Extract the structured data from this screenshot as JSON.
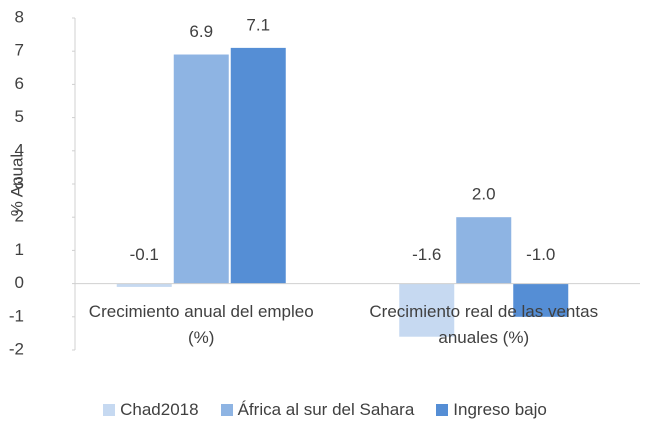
{
  "chart_data": {
    "type": "bar",
    "y_label": "% Anual",
    "categories": [
      "Crecimiento anual del empleo (%)",
      "Crecimiento real de las ventas anuales (%)"
    ],
    "series": [
      {
        "name": "Chad2018",
        "color": "#c6d9f1",
        "values": [
          -0.1,
          -1.6
        ],
        "value_labels": [
          "-0.1",
          "-1.6"
        ]
      },
      {
        "name": "África al sur del Sahara",
        "color": "#8eb4e3",
        "values": [
          6.9,
          2.0
        ],
        "value_labels": [
          "6.9",
          "2.0"
        ]
      },
      {
        "name": "Ingreso  bajo",
        "color": "#558ed5",
        "values": [
          7.1,
          -1.0
        ],
        "value_labels": [
          "7.1",
          "-1.0"
        ]
      }
    ],
    "ylim": [
      -2,
      8
    ],
    "yticks": [
      -2,
      -1,
      0,
      1,
      2,
      3,
      4,
      5,
      6,
      7,
      8
    ],
    "grid": false,
    "legend": "bottom"
  }
}
